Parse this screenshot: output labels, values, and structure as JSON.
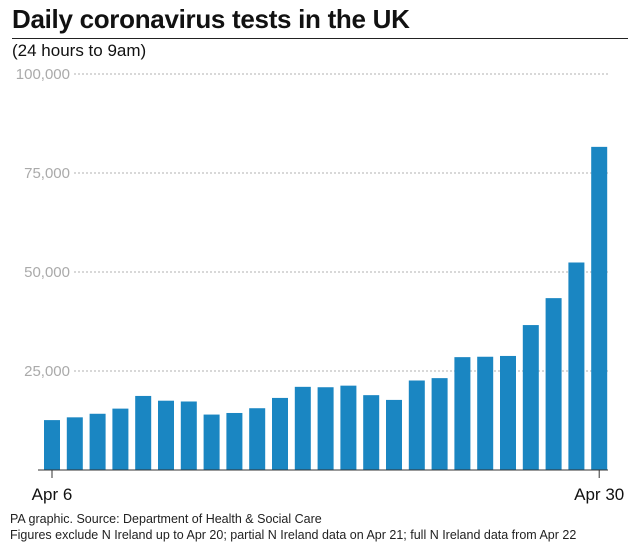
{
  "chart": {
    "title": "Daily coronavirus tests in the UK",
    "subtitle": "(24 hours to 9am)"
  },
  "footer": {
    "source": "PA graphic. Source: Department of Health & Social Care",
    "note": "Figures exclude N Ireland up to Apr 20; partial N Ireland data on Apr 21; full N Ireland data from Apr 22"
  },
  "colors": {
    "bar": "#1a86c2",
    "grid": "#b0b0b0",
    "tick_label": "#aaaaaa",
    "axis": "#333333"
  },
  "chart_data": {
    "type": "bar",
    "title": "Daily coronavirus tests in the UK",
    "subtitle": "(24 hours to 9am)",
    "categories": [
      "Apr 6",
      "Apr 7",
      "Apr 8",
      "Apr 9",
      "Apr 10",
      "Apr 11",
      "Apr 12",
      "Apr 13",
      "Apr 14",
      "Apr 15",
      "Apr 16",
      "Apr 17",
      "Apr 18",
      "Apr 19",
      "Apr 20",
      "Apr 21",
      "Apr 22",
      "Apr 23",
      "Apr 24",
      "Apr 25",
      "Apr 26",
      "Apr 27",
      "Apr 28",
      "Apr 29",
      "Apr 30"
    ],
    "values": [
      12600,
      13300,
      14200,
      15500,
      18700,
      17500,
      17300,
      14000,
      14400,
      15600,
      18200,
      21000,
      20900,
      21300,
      18900,
      17700,
      22600,
      23200,
      28500,
      28600,
      28800,
      36600,
      43400,
      52400,
      81600
    ],
    "xtick_labels": [
      {
        "index": 0,
        "label": "Apr 6"
      },
      {
        "index": 24,
        "label": "Apr 30"
      }
    ],
    "yticks": [
      {
        "value": 25000,
        "label": "25,000"
      },
      {
        "value": 50000,
        "label": "50,000"
      },
      {
        "value": 75000,
        "label": "75,000"
      },
      {
        "value": 100000,
        "label": "100,000"
      }
    ],
    "ylim": [
      0,
      100000
    ],
    "xlabel": "",
    "ylabel": "",
    "grid": true,
    "legend": "none"
  }
}
